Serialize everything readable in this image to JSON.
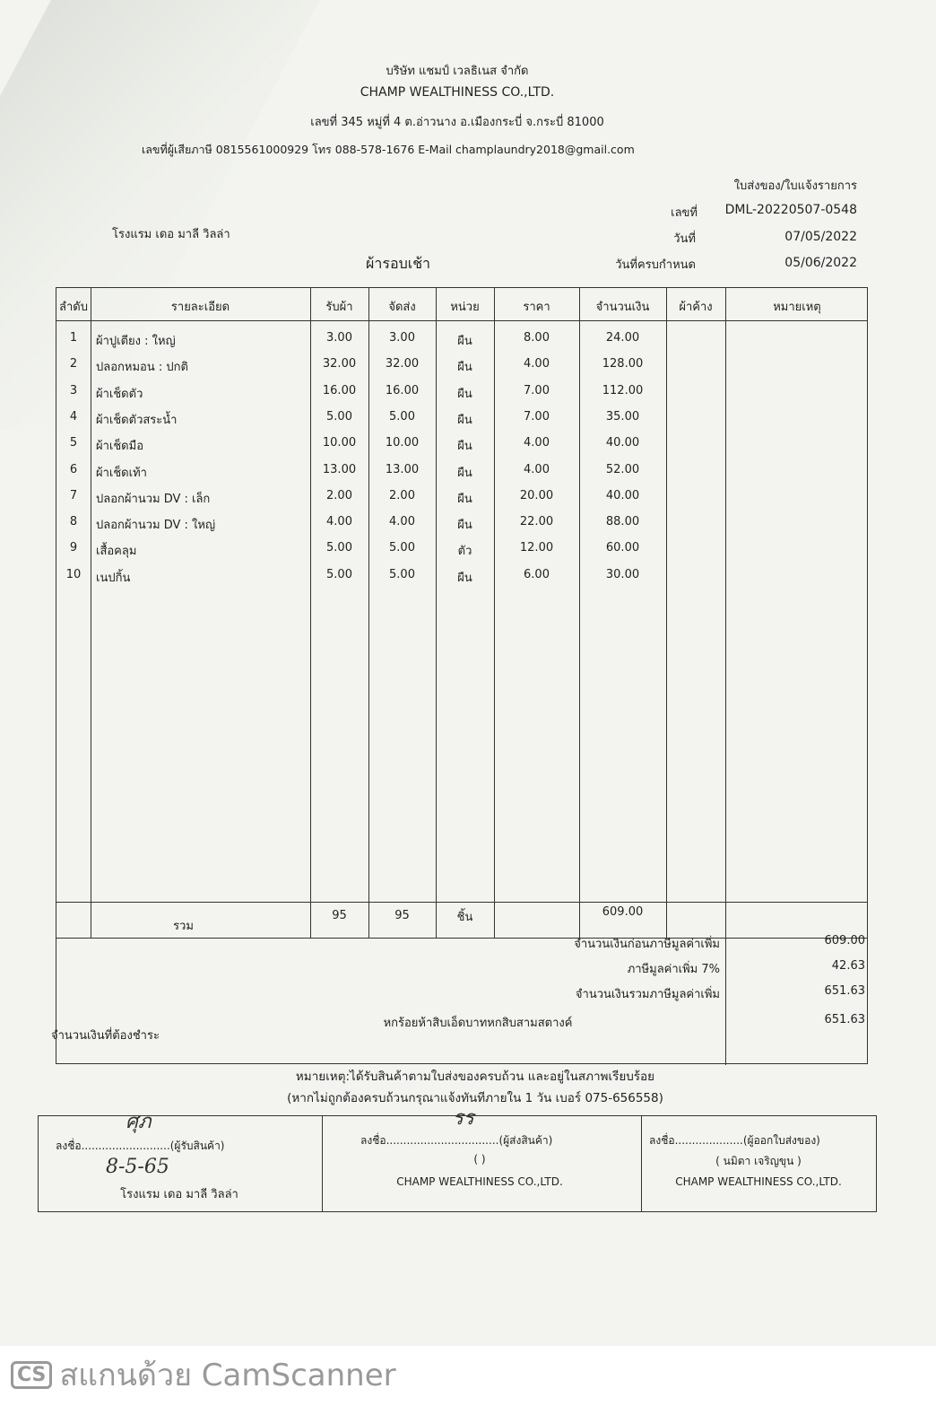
{
  "company": {
    "name_th": "บริษัท แชมป์ เวลธิเนส จำกัด",
    "name_en": "CHAMP WEALTHINESS CO.,LTD.",
    "address": "เลขที่ 345 หมู่ที่ 4 ต.อ่าวนาง อ.เมืองกระบี่ จ.กระบี่ 81000",
    "contact": "เลขที่ผู้เสียภาษี 0815561000929 โทร 088-578-1676 E-Mail champlaundry2018@gmail.com"
  },
  "doc": {
    "type": "ใบส่งของ/ใบแจ้งรายการ",
    "no_label": "เลขที่",
    "no": "DML-20220507-0548",
    "date_label": "วันที่",
    "date": "07/05/2022",
    "due_label": "วันที่ครบกำหนด",
    "due": "05/06/2022",
    "customer": "โรงแรม เดอ มาลี วิลล่า",
    "round": "ผ้ารอบเช้า"
  },
  "table": {
    "headers": [
      "ลำดับ",
      "รายละเอียด",
      "รับผ้า",
      "จัดส่ง",
      "หน่วย",
      "ราคา",
      "จำนวนเงิน",
      "ผ้าค้าง",
      "หมายเหตุ"
    ],
    "rows": [
      [
        "1",
        "ผ้าปูเตียง : ใหญ่",
        "3.00",
        "3.00",
        "ผืน",
        "8.00",
        "24.00"
      ],
      [
        "2",
        "ปลอกหมอน : ปกติ",
        "32.00",
        "32.00",
        "ผืน",
        "4.00",
        "128.00"
      ],
      [
        "3",
        "ผ้าเช็ดตัว",
        "16.00",
        "16.00",
        "ผืน",
        "7.00",
        "112.00"
      ],
      [
        "4",
        "ผ้าเช็ดตัวสระน้ำ",
        "5.00",
        "5.00",
        "ผืน",
        "7.00",
        "35.00"
      ],
      [
        "5",
        "ผ้าเช็ดมือ",
        "10.00",
        "10.00",
        "ผืน",
        "4.00",
        "40.00"
      ],
      [
        "6",
        "ผ้าเช็ดเท้า",
        "13.00",
        "13.00",
        "ผืน",
        "4.00",
        "52.00"
      ],
      [
        "7",
        "ปลอกผ้านวม DV : เล็ก",
        "2.00",
        "2.00",
        "ผืน",
        "20.00",
        "40.00"
      ],
      [
        "8",
        "ปลอกผ้านวม DV : ใหญ่",
        "4.00",
        "4.00",
        "ผืน",
        "22.00",
        "88.00"
      ],
      [
        "9",
        "เสื้อคลุม",
        "5.00",
        "5.00",
        "ตัว",
        "12.00",
        "60.00"
      ],
      [
        "10",
        "เนปกิ้น",
        "5.00",
        "5.00",
        "ผืน",
        "6.00",
        "30.00"
      ]
    ],
    "total": {
      "label": "รวม",
      "received": "95",
      "delivered": "95",
      "unit": "ชิ้น",
      "amount": "609.00"
    }
  },
  "summary": {
    "pre_vat_label": "จำนวนเงินก่อนภาษีมูลค่าเพิ่ม",
    "pre_vat": "609.00",
    "vat_label": "ภาษีมูลค่าเพิ่ม 7%",
    "vat": "42.63",
    "incl_vat_label": "จำนวนเงินรวมภาษีมูลค่าเพิ่ม",
    "incl_vat": "651.63",
    "payable_label": "จำนวนเงินที่ต้องชำระ",
    "payable_words": "หกร้อยห้าสิบเอ็ดบาทหกสิบสามสตางค์",
    "payable": "651.63"
  },
  "note": {
    "line1": "หมายเหตุ:ได้รับสินค้าตามใบส่งของครบถ้วน และอยู่ในสภาพเรียบร้อย",
    "line2": "(หากไม่ถูกต้องครบถ้วนกรุณาแจ้งทันทีภายใน 1 วัน   เบอร์ 075-656558)"
  },
  "signatures": [
    {
      "line": "ลงชื่อ..........................(ผู้รับสินค้า)",
      "handwritten": "8-5-65",
      "sub": "(.....................)",
      "org": "โรงแรม เดอ มาลี วิลล่า"
    },
    {
      "line": "ลงชื่อ.................................(ผู้ส่งสินค้า)",
      "sub": "(                    )",
      "org": "CHAMP WEALTHINESS CO.,LTD."
    },
    {
      "line": "ลงชื่อ....................(ผู้ออกใบส่งของ)",
      "sub": "(      นมิตา เจริญขุน      )",
      "org": "CHAMP WEALTHINESS CO.,LTD."
    }
  ],
  "watermark": {
    "logo": "CS",
    "text": "สแกนด้วย CamScanner"
  }
}
